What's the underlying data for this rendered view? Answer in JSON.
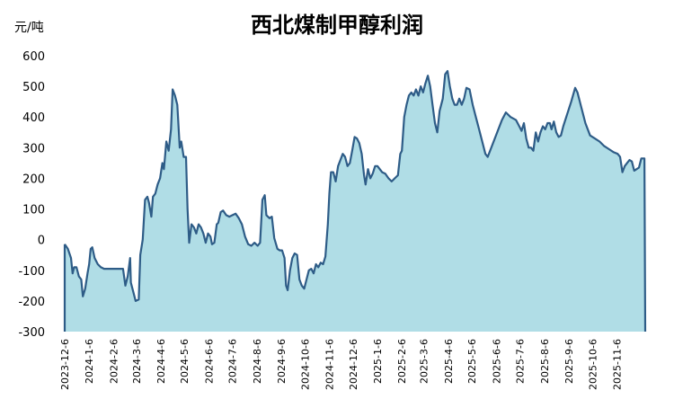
{
  "chart_data": {
    "type": "area",
    "title": "西北煤制甲醇利润",
    "ylabel": "元/吨",
    "xlabel": "",
    "ylim": [
      -300,
      600
    ],
    "yticks": [
      600,
      500,
      400,
      300,
      200,
      100,
      0,
      -100,
      -200,
      -300
    ],
    "xticks": [
      "2023-12-6",
      "2024-1-6",
      "2024-2-6",
      "2024-3-6",
      "2024-4-6",
      "2024-5-6",
      "2024-6-6",
      "2024-7-6",
      "2024-8-6",
      "2024-9-6",
      "2024-10-6",
      "2024-11-6",
      "2024-12-6",
      "2025-1-6",
      "2025-2-6",
      "2025-3-6",
      "2025-4-6",
      "2025-5-6",
      "2025-6-6",
      "2025-7-6",
      "2025-8-6",
      "2025-9-6",
      "2025-10-6",
      "2025-11-6"
    ],
    "fill_color": "#b0dde6",
    "line_color": "#2e5c87",
    "series": [
      {
        "values": [
          [
            "2023-12-06",
            -15
          ],
          [
            "2023-12-10",
            -30
          ],
          [
            "2023-12-14",
            -60
          ],
          [
            "2023-12-16",
            -110
          ],
          [
            "2023-12-18",
            -90
          ],
          [
            "2023-12-21",
            -90
          ],
          [
            "2023-12-24",
            -120
          ],
          [
            "2023-12-27",
            -130
          ],
          [
            "2023-12-29",
            -185
          ],
          [
            "2024-01-01",
            -160
          ],
          [
            "2024-01-04",
            -110
          ],
          [
            "2024-01-06",
            -80
          ],
          [
            "2024-01-08",
            -30
          ],
          [
            "2024-01-10",
            -25
          ],
          [
            "2024-01-13",
            -60
          ],
          [
            "2024-01-17",
            -80
          ],
          [
            "2024-01-21",
            -90
          ],
          [
            "2024-01-25",
            -95
          ],
          [
            "2024-02-01",
            -95
          ],
          [
            "2024-02-10",
            -95
          ],
          [
            "2024-02-18",
            -95
          ],
          [
            "2024-02-21",
            -150
          ],
          [
            "2024-02-24",
            -120
          ],
          [
            "2024-02-27",
            -60
          ],
          [
            "2024-02-28",
            -140
          ],
          [
            "2024-03-02",
            -170
          ],
          [
            "2024-03-05",
            -200
          ],
          [
            "2024-03-09",
            -195
          ],
          [
            "2024-03-11",
            -50
          ],
          [
            "2024-03-14",
            0
          ],
          [
            "2024-03-17",
            130
          ],
          [
            "2024-03-20",
            140
          ],
          [
            "2024-03-22",
            120
          ],
          [
            "2024-03-25",
            75
          ],
          [
            "2024-03-27",
            140
          ],
          [
            "2024-03-30",
            150
          ],
          [
            "2024-04-02",
            180
          ],
          [
            "2024-04-05",
            200
          ],
          [
            "2024-04-08",
            250
          ],
          [
            "2024-04-10",
            230
          ],
          [
            "2024-04-13",
            320
          ],
          [
            "2024-04-16",
            290
          ],
          [
            "2024-04-19",
            360
          ],
          [
            "2024-04-21",
            490
          ],
          [
            "2024-04-24",
            470
          ],
          [
            "2024-04-27",
            440
          ],
          [
            "2024-04-30",
            300
          ],
          [
            "2024-05-02",
            320
          ],
          [
            "2024-05-05",
            270
          ],
          [
            "2024-05-08",
            270
          ],
          [
            "2024-05-10",
            100
          ],
          [
            "2024-05-12",
            -10
          ],
          [
            "2024-05-15",
            50
          ],
          [
            "2024-05-18",
            40
          ],
          [
            "2024-05-21",
            20
          ],
          [
            "2024-05-24",
            50
          ],
          [
            "2024-05-27",
            40
          ],
          [
            "2024-05-30",
            20
          ],
          [
            "2024-06-02",
            -10
          ],
          [
            "2024-06-05",
            20
          ],
          [
            "2024-06-08",
            10
          ],
          [
            "2024-06-10",
            -15
          ],
          [
            "2024-06-13",
            -10
          ],
          [
            "2024-06-16",
            50
          ],
          [
            "2024-06-18",
            55
          ],
          [
            "2024-06-21",
            90
          ],
          [
            "2024-06-24",
            95
          ],
          [
            "2024-06-28",
            80
          ],
          [
            "2024-07-02",
            75
          ],
          [
            "2024-07-06",
            80
          ],
          [
            "2024-07-10",
            85
          ],
          [
            "2024-07-14",
            70
          ],
          [
            "2024-07-18",
            50
          ],
          [
            "2024-07-22",
            10
          ],
          [
            "2024-07-26",
            -15
          ],
          [
            "2024-07-30",
            -20
          ],
          [
            "2024-08-03",
            -10
          ],
          [
            "2024-08-07",
            -20
          ],
          [
            "2024-08-10",
            -10
          ],
          [
            "2024-08-13",
            130
          ],
          [
            "2024-08-16",
            145
          ],
          [
            "2024-08-18",
            80
          ],
          [
            "2024-08-22",
            70
          ],
          [
            "2024-08-25",
            75
          ],
          [
            "2024-08-28",
            5
          ],
          [
            "2024-09-01",
            -30
          ],
          [
            "2024-09-04",
            -35
          ],
          [
            "2024-09-07",
            -35
          ],
          [
            "2024-09-10",
            -60
          ],
          [
            "2024-09-12",
            -150
          ],
          [
            "2024-09-14",
            -165
          ],
          [
            "2024-09-17",
            -100
          ],
          [
            "2024-09-20",
            -60
          ],
          [
            "2024-09-23",
            -45
          ],
          [
            "2024-09-26",
            -50
          ],
          [
            "2024-09-29",
            -130
          ],
          [
            "2024-10-02",
            -150
          ],
          [
            "2024-10-05",
            -160
          ],
          [
            "2024-10-08",
            -130
          ],
          [
            "2024-10-11",
            -100
          ],
          [
            "2024-10-14",
            -95
          ],
          [
            "2024-10-17",
            -110
          ],
          [
            "2024-10-20",
            -80
          ],
          [
            "2024-10-23",
            -90
          ],
          [
            "2024-10-26",
            -75
          ],
          [
            "2024-10-29",
            -80
          ],
          [
            "2024-11-01",
            -55
          ],
          [
            "2024-11-04",
            50
          ],
          [
            "2024-11-06",
            150
          ],
          [
            "2024-11-08",
            220
          ],
          [
            "2024-11-11",
            220
          ],
          [
            "2024-11-14",
            190
          ],
          [
            "2024-11-17",
            240
          ],
          [
            "2024-11-20",
            260
          ],
          [
            "2024-11-23",
            280
          ],
          [
            "2024-11-26",
            270
          ],
          [
            "2024-11-29",
            240
          ],
          [
            "2024-12-02",
            250
          ],
          [
            "2024-12-05",
            290
          ],
          [
            "2024-12-08",
            335
          ],
          [
            "2024-12-11",
            330
          ],
          [
            "2024-12-14",
            315
          ],
          [
            "2024-12-17",
            280
          ],
          [
            "2024-12-20",
            210
          ],
          [
            "2024-12-22",
            180
          ],
          [
            "2024-12-25",
            230
          ],
          [
            "2024-12-28",
            200
          ],
          [
            "2024-12-31",
            215
          ],
          [
            "2025-01-03",
            240
          ],
          [
            "2025-01-06",
            240
          ],
          [
            "2025-01-09",
            230
          ],
          [
            "2025-01-12",
            220
          ],
          [
            "2025-01-16",
            215
          ],
          [
            "2025-01-20",
            200
          ],
          [
            "2025-01-24",
            190
          ],
          [
            "2025-01-28",
            200
          ],
          [
            "2025-02-01",
            210
          ],
          [
            "2025-02-04",
            280
          ],
          [
            "2025-02-06",
            290
          ],
          [
            "2025-02-09",
            400
          ],
          [
            "2025-02-12",
            440
          ],
          [
            "2025-02-15",
            470
          ],
          [
            "2025-02-18",
            480
          ],
          [
            "2025-02-21",
            470
          ],
          [
            "2025-02-24",
            490
          ],
          [
            "2025-02-27",
            470
          ],
          [
            "2025-03-02",
            500
          ],
          [
            "2025-03-05",
            480
          ],
          [
            "2025-03-08",
            510
          ],
          [
            "2025-03-11",
            535
          ],
          [
            "2025-03-14",
            500
          ],
          [
            "2025-03-17",
            440
          ],
          [
            "2025-03-20",
            380
          ],
          [
            "2025-03-23",
            350
          ],
          [
            "2025-03-26",
            420
          ],
          [
            "2025-03-30",
            460
          ],
          [
            "2025-04-02",
            540
          ],
          [
            "2025-04-05",
            550
          ],
          [
            "2025-04-08",
            500
          ],
          [
            "2025-04-11",
            460
          ],
          [
            "2025-04-14",
            440
          ],
          [
            "2025-04-17",
            440
          ],
          [
            "2025-04-20",
            460
          ],
          [
            "2025-04-23",
            440
          ],
          [
            "2025-04-26",
            460
          ],
          [
            "2025-04-29",
            495
          ],
          [
            "2025-05-03",
            490
          ],
          [
            "2025-05-07",
            440
          ],
          [
            "2025-05-11",
            400
          ],
          [
            "2025-05-15",
            360
          ],
          [
            "2025-05-19",
            320
          ],
          [
            "2025-05-23",
            280
          ],
          [
            "2025-05-26",
            270
          ],
          [
            "2025-06-04",
            330
          ],
          [
            "2025-06-13",
            390
          ],
          [
            "2025-06-18",
            415
          ],
          [
            "2025-06-24",
            400
          ],
          [
            "2025-07-01",
            390
          ],
          [
            "2025-07-05",
            370
          ],
          [
            "2025-07-08",
            355
          ],
          [
            "2025-07-11",
            380
          ],
          [
            "2025-07-14",
            330
          ],
          [
            "2025-07-17",
            300
          ],
          [
            "2025-07-20",
            300
          ],
          [
            "2025-07-23",
            290
          ],
          [
            "2025-07-26",
            350
          ],
          [
            "2025-07-29",
            320
          ],
          [
            "2025-08-01",
            350
          ],
          [
            "2025-08-04",
            370
          ],
          [
            "2025-08-07",
            360
          ],
          [
            "2025-08-10",
            380
          ],
          [
            "2025-08-13",
            380
          ],
          [
            "2025-08-15",
            360
          ],
          [
            "2025-08-18",
            385
          ],
          [
            "2025-08-21",
            350
          ],
          [
            "2025-08-24",
            335
          ],
          [
            "2025-08-27",
            340
          ],
          [
            "2025-08-30",
            370
          ],
          [
            "2025-09-04",
            410
          ],
          [
            "2025-09-09",
            450
          ],
          [
            "2025-09-14",
            495
          ],
          [
            "2025-09-17",
            480
          ],
          [
            "2025-09-22",
            430
          ],
          [
            "2025-09-27",
            380
          ],
          [
            "2025-10-03",
            340
          ],
          [
            "2025-10-09",
            330
          ],
          [
            "2025-10-15",
            320
          ],
          [
            "2025-10-21",
            305
          ],
          [
            "2025-10-27",
            295
          ],
          [
            "2025-11-02",
            285
          ],
          [
            "2025-11-07",
            280
          ],
          [
            "2025-11-10",
            270
          ],
          [
            "2025-11-13",
            220
          ],
          [
            "2025-11-16",
            240
          ],
          [
            "2025-11-19",
            250
          ],
          [
            "2025-11-22",
            260
          ],
          [
            "2025-11-25",
            255
          ],
          [
            "2025-11-28",
            225
          ],
          [
            "2025-12-01",
            230
          ],
          [
            "2025-12-04",
            235
          ],
          [
            "2025-12-07",
            265
          ],
          [
            "2025-12-11",
            265
          ],
          [
            "2025-12-12",
            -300
          ]
        ]
      }
    ]
  }
}
